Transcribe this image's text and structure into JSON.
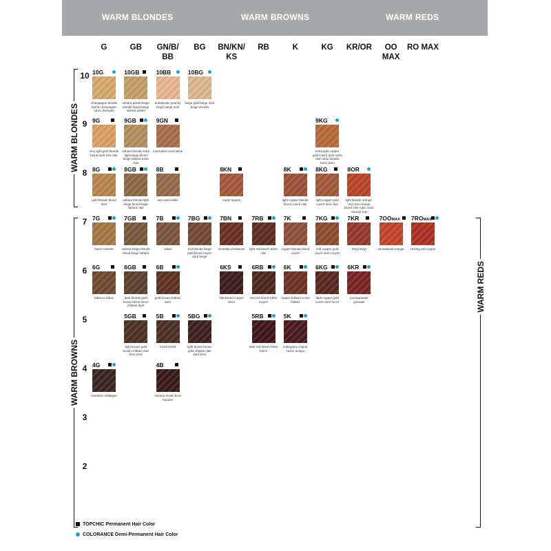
{
  "families": [
    "WARM BLONDES",
    "WARM BROWNS",
    "WARM REDS"
  ],
  "columns": [
    "G",
    "GB",
    "GN/B/ BB",
    "BG",
    "BN/KN/ KS",
    "RB",
    "K",
    "KG",
    "KR/OR",
    "OO MAX",
    "RO MAX"
  ],
  "levels": [
    "10",
    "9",
    "8",
    "7",
    "6",
    "5",
    "4",
    "3",
    "2"
  ],
  "side_labels": {
    "blondes": "WARM BLONDES",
    "browns": "WARM BROWNS",
    "reds": "WARM REDS"
  },
  "marker_colors": {
    "topchic": "#111111",
    "colorance": "#1aa3c8"
  },
  "swatches": [
    {
      "code": "10G",
      "col": 0,
      "level": "10",
      "sq": false,
      "dot": true,
      "color": "#d7a86a",
      "desc": "champagne blonde blond champagne rubio champán"
    },
    {
      "code": "10GB",
      "col": 1,
      "level": "10",
      "sq": true,
      "dot": false,
      "color": "#c59e6a",
      "desc": "sahara pastel beige blonde blond beige sahara pastel"
    },
    {
      "code": "10BB",
      "col": 2,
      "level": "10",
      "sq": false,
      "dot": true,
      "color": "#e9b58e",
      "desc": "andalusian peachy beige beige nuté"
    },
    {
      "code": "10BG",
      "col": 3,
      "level": "10",
      "sq": false,
      "dot": true,
      "color": "#dcb88f",
      "desc": "beige gold beige doré beige dorado"
    },
    {
      "code": "9G",
      "col": 0,
      "level": "9",
      "sq": true,
      "dot": false,
      "color": "#dca064",
      "desc": "very light gold blonde blond doré très clair"
    },
    {
      "code": "9GB",
      "col": 1,
      "level": "9",
      "sq": true,
      "dot": true,
      "color": "#b38e5e",
      "desc": "sahara blonde extra light beige blond beige sahara extra clair"
    },
    {
      "code": "9GN",
      "col": 2,
      "level": "9",
      "sq": true,
      "dot": false,
      "color": "#a8704a",
      "desc": "tourmaline tourmaline"
    },
    {
      "code": "9KG",
      "col": 7,
      "level": "9",
      "sq": false,
      "dot": true,
      "color": "#b86a3c",
      "desc": "extra light copper gold cuivré doré extra clair rubio dorado extra claro"
    },
    {
      "code": "8G",
      "col": 0,
      "level": "8",
      "sq": true,
      "dot": true,
      "color": "#b98650",
      "desc": "gold blonde blond doré"
    },
    {
      "code": "8GB",
      "col": 1,
      "level": "8",
      "sq": true,
      "dot": true,
      "color": "#8d6a45",
      "desc": "sahara blonde light beige blond beige sahara clair"
    },
    {
      "code": "8B",
      "col": 2,
      "level": "8",
      "sq": true,
      "dot": false,
      "color": "#966a4c",
      "desc": "sea sand sable"
    },
    {
      "code": "8KN",
      "col": 4,
      "level": "8",
      "sq": true,
      "dot": false,
      "color": "#a5583a",
      "desc": "topaz topaze"
    },
    {
      "code": "8K",
      "col": 6,
      "level": "8",
      "sq": true,
      "dot": true,
      "color": "#9c5238",
      "desc": "light copper blonde blond cuivré clair"
    },
    {
      "code": "8KG",
      "col": 7,
      "level": "8",
      "sq": true,
      "dot": false,
      "color": "#a25a3a",
      "desc": "light copper gold cuivré doré clair"
    },
    {
      "code": "8OR",
      "col": 8,
      "level": "8",
      "sq": false,
      "dot": true,
      "color": "#b9442a",
      "desc": "light blonde orange-red rose-orange blond clair rubio claro naranja rojo"
    },
    {
      "code": "7G",
      "col": 0,
      "level": "7",
      "sq": true,
      "dot": true,
      "color": "#a57846",
      "desc": "hazel noisette"
    },
    {
      "code": "7GB",
      "col": 1,
      "level": "7",
      "sq": true,
      "dot": false,
      "color": "#7a5a3e",
      "desc": "sahara beige blonde blond beige sahara"
    },
    {
      "code": "7B",
      "col": 2,
      "level": "7",
      "sq": true,
      "dot": true,
      "color": "#7d5640",
      "desc": "safari"
    },
    {
      "code": "7BG",
      "col": 3,
      "level": "7",
      "sq": true,
      "dot": true,
      "color": "#754a36",
      "desc": "mid blonde beige gold blond moyen doré beige"
    },
    {
      "code": "7BN",
      "col": 4,
      "level": "7",
      "sq": true,
      "dot": false,
      "color": "#6a3226",
      "desc": "venetian vénitienne"
    },
    {
      "code": "7RB",
      "col": 5,
      "level": "7",
      "sq": true,
      "dot": true,
      "color": "#5e2f24",
      "desc": "light red beech hêtre clair"
    },
    {
      "code": "7K",
      "col": 6,
      "level": "7",
      "sq": true,
      "dot": false,
      "color": "#8d523c",
      "desc": "copper blonde blond cuivré"
    },
    {
      "code": "7KG",
      "col": 7,
      "level": "7",
      "sq": true,
      "dot": true,
      "color": "#8c4c30",
      "desc": "mid copper gold cuivré doré moyen"
    },
    {
      "code": "7KR",
      "col": 8,
      "level": "7",
      "sq": true,
      "dot": false,
      "color": "#94392c",
      "desc": "beryl béryl"
    },
    {
      "code": "7OO",
      "sup": "MAX",
      "col": 9,
      "level": "7",
      "sq": true,
      "dot": false,
      "color": "#c2442a",
      "desc": "sensational orange"
    },
    {
      "code": "7RO",
      "sup": "MAX",
      "col": 10,
      "level": "7",
      "sq": true,
      "dot": true,
      "color": "#ad3224",
      "desc": "striking red copper"
    },
    {
      "code": "6G",
      "col": 0,
      "level": "6",
      "sq": true,
      "dot": false,
      "color": "#714a30",
      "desc": "tobacco tabac"
    },
    {
      "code": "6GB",
      "col": 1,
      "level": "6",
      "sq": true,
      "dot": false,
      "color": "#5c4230",
      "desc": "dark blonde gold brown blond foncé châtain doré"
    },
    {
      "code": "6B",
      "col": 2,
      "level": "6",
      "sq": true,
      "dot": true,
      "color": "#5e3326",
      "desc": "gold brown châtain doré"
    },
    {
      "code": "6KS",
      "col": 4,
      "level": "6",
      "sq": true,
      "dot": false,
      "color": "#3e1d1c",
      "desc": "blackened copper silver"
    },
    {
      "code": "6RB",
      "col": 5,
      "level": "6",
      "sq": true,
      "dot": true,
      "color": "#4e2720",
      "desc": "mid red beech hêtre moyen"
    },
    {
      "code": "6K",
      "col": 6,
      "level": "6",
      "sq": true,
      "dot": true,
      "color": "#6d3424",
      "desc": "copper brilliant cuivre brillant"
    },
    {
      "code": "6KG",
      "col": 7,
      "level": "6",
      "sq": true,
      "dot": true,
      "color": "#5a2820",
      "desc": "dark copper gold cuivre doré foncé"
    },
    {
      "code": "6KR",
      "col": 8,
      "level": "6",
      "sq": true,
      "dot": true,
      "color": "#7a2422",
      "desc": "pomegranate grenade"
    },
    {
      "code": "5GB",
      "col": 1,
      "level": "5",
      "sq": true,
      "dot": false,
      "color": "#4c3426",
      "desc": "light brown gold brown châtain clair brun doré"
    },
    {
      "code": "5B",
      "col": 2,
      "level": "5",
      "sq": true,
      "dot": true,
      "color": "#4c3026",
      "desc": "brazil brésil"
    },
    {
      "code": "5BG",
      "col": 3,
      "level": "5",
      "sq": true,
      "dot": true,
      "color": "#3e211c",
      "desc": "light brown brown gold châtain clair doré brun"
    },
    {
      "code": "5RB",
      "col": 5,
      "level": "5",
      "sq": true,
      "dot": true,
      "color": "#42191a",
      "desc": "dark red beech hêtre foncé"
    },
    {
      "code": "5K",
      "col": 6,
      "level": "5",
      "sq": true,
      "dot": true,
      "color": "#4a1c1e",
      "desc": "mahogany copper cuivre acajou"
    },
    {
      "code": "4G",
      "col": 0,
      "level": "4",
      "sq": true,
      "dot": true,
      "color": "#3a2620",
      "desc": "chestnut châtaigne"
    },
    {
      "code": "4B",
      "col": 2,
      "level": "4",
      "sq": true,
      "dot": false,
      "color": "#3a1c18",
      "desc": "havana brown brun havane"
    }
  ],
  "legend": [
    {
      "marker": "square",
      "label": "TOPCHIC Permanent Hair Color"
    },
    {
      "marker": "dot",
      "label": "COLORANCE Demi-Permanent Hair Color"
    }
  ]
}
